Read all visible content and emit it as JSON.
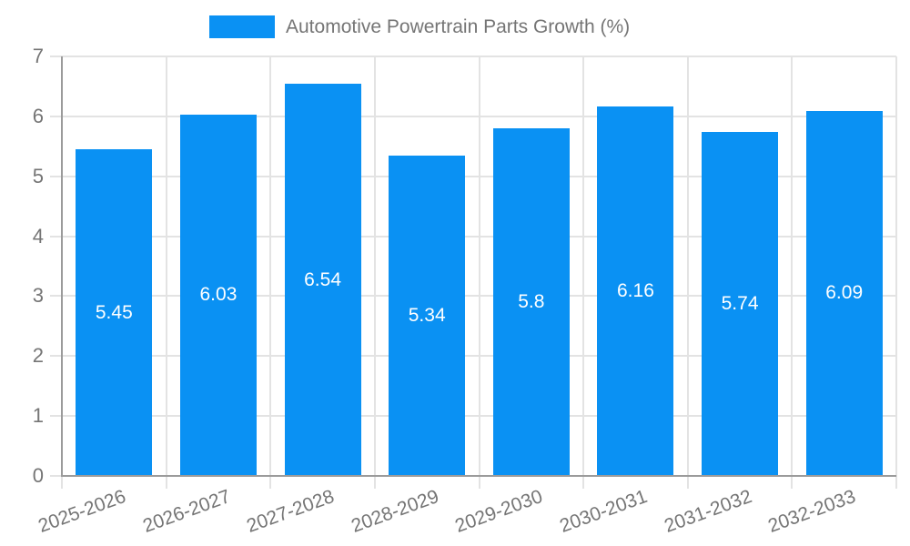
{
  "colors": {
    "bar": "#0A91F3",
    "grid": "#E3E3E3",
    "axis": "#9B9B9B",
    "text": "#757575",
    "value_label": "#FFFFFF",
    "background": "#FFFFFF"
  },
  "chart_data": {
    "type": "bar",
    "title": "Automotive Powertrain Parts Growth (%)",
    "legend": [
      "Automotive Powertrain Parts Growth (%)"
    ],
    "legend_position": "top-center",
    "categories": [
      "2025-2026",
      "2026-2027",
      "2027-2028",
      "2028-2029",
      "2029-2030",
      "2030-2031",
      "2031-2032",
      "2032-2033"
    ],
    "values": [
      5.45,
      6.03,
      6.54,
      5.34,
      5.8,
      6.16,
      5.74,
      6.09
    ],
    "value_labels": [
      "5.45",
      "6.03",
      "6.54",
      "5.34",
      "5.8",
      "6.16",
      "5.74",
      "6.09"
    ],
    "xlabel": "",
    "ylabel": "",
    "ylim": [
      0,
      7
    ],
    "yticks": [
      0,
      1,
      2,
      3,
      4,
      5,
      6,
      7
    ],
    "grid": true,
    "bar_color": "#0A91F3",
    "value_label_color": "#FFFFFF",
    "xtick_rotation_deg": 20
  }
}
